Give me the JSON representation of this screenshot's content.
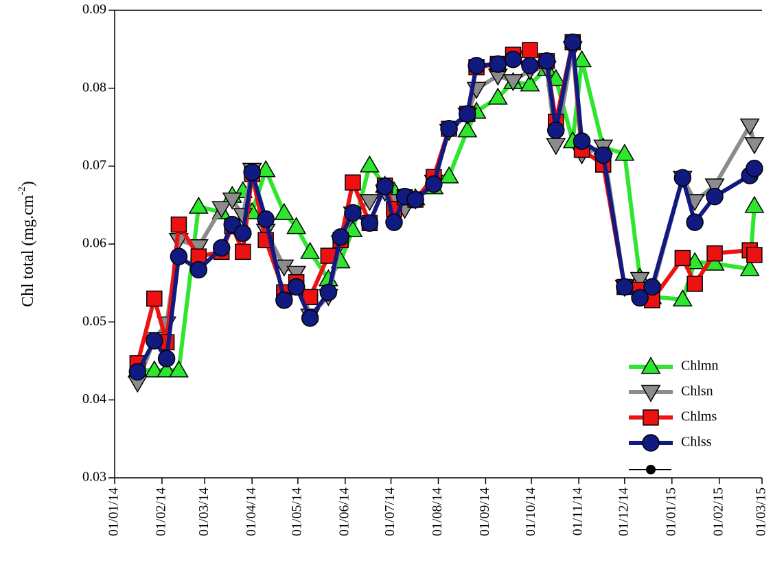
{
  "chart_data": {
    "type": "line",
    "ylabel": [
      "Chl total (mg.cm",
      "-2",
      ")"
    ],
    "x": [
      "2014-01-16",
      "2014-01-27",
      "2014-02-04",
      "2014-02-12",
      "2014-02-25",
      "2014-03-12",
      "2014-03-19",
      "2014-03-26",
      "2014-04-01",
      "2014-04-10",
      "2014-04-22",
      "2014-04-30",
      "2014-05-09",
      "2014-05-21",
      "2014-05-29",
      "2014-06-06",
      "2014-06-17",
      "2014-06-27",
      "2014-07-03",
      "2014-07-10",
      "2014-07-17",
      "2014-07-29",
      "2014-08-08",
      "2014-08-20",
      "2014-08-26",
      "2014-09-09",
      "2014-09-19",
      "2014-09-30",
      "2014-10-11",
      "2014-10-17",
      "2014-10-28",
      "2014-11-03",
      "2014-11-17",
      "2014-12-01",
      "2014-12-11",
      "2014-12-19",
      "2015-01-08",
      "2015-01-16",
      "2015-01-29",
      "2015-02-21",
      "2015-02-24"
    ],
    "series": [
      {
        "name": "Chlmn",
        "color": "#2ee62e",
        "marker": "triangle-up",
        "values": [
          0.0438,
          0.0438,
          0.0438,
          0.0438,
          0.0648,
          0.0641,
          0.0662,
          0.0668,
          0.0641,
          0.0695,
          0.064,
          0.0622,
          0.059,
          0.0555,
          0.0578,
          0.0618,
          0.0701,
          0.0675,
          0.0668,
          0.0655,
          0.0659,
          0.0673,
          0.0687,
          0.0746,
          0.077,
          0.0788,
          0.0808,
          0.0805,
          0.0825,
          0.0812,
          0.0732,
          0.0836,
          0.0724,
          0.0716,
          0.0557,
          0.0532,
          0.0529,
          0.0577,
          0.0575,
          0.0568,
          0.0649
        ]
      },
      {
        "name": "Chlsn",
        "color": "#8c8c8c",
        "marker": "triangle-down",
        "values": [
          0.0422,
          0.0478,
          0.0498,
          0.0605,
          0.0597,
          0.0646,
          0.0657,
          0.0637,
          0.0695,
          0.0617,
          0.0571,
          0.0563,
          0.0508,
          0.0533,
          0.0602,
          0.0639,
          0.0655,
          0.0667,
          0.0655,
          0.0645,
          0.0657,
          0.068,
          0.0745,
          0.0766,
          0.0799,
          0.0816,
          0.0809,
          0.0823,
          0.0826,
          0.0727,
          0.0851,
          0.0715,
          0.0725,
          0.0545,
          0.0555,
          0.054,
          0.0685,
          0.0655,
          0.0675,
          0.0752,
          0.0728
        ]
      },
      {
        "name": "Chlms",
        "color": "#ee1111",
        "marker": "square",
        "values": [
          0.0447,
          0.053,
          0.0474,
          0.0625,
          0.0584,
          0.059,
          0.0623,
          0.059,
          0.069,
          0.0605,
          0.0538,
          0.0551,
          0.0532,
          0.0585,
          0.0605,
          0.0679,
          0.0627,
          0.0675,
          0.0645,
          0.066,
          0.0657,
          0.0686,
          0.0748,
          0.0767,
          0.0827,
          0.0831,
          0.0843,
          0.0849,
          0.0835,
          0.0757,
          0.0859,
          0.0721,
          0.0702,
          0.0545,
          0.0541,
          0.0528,
          0.0582,
          0.0549,
          0.0588,
          0.0592,
          0.0586
        ]
      },
      {
        "name": "Chlss",
        "color": "#111a80",
        "marker": "circle",
        "values": [
          0.0436,
          0.0476,
          0.0453,
          0.0584,
          0.0567,
          0.0595,
          0.0625,
          0.0614,
          0.0692,
          0.0632,
          0.0528,
          0.0545,
          0.0505,
          0.0538,
          0.0609,
          0.064,
          0.0627,
          0.0674,
          0.0628,
          0.0661,
          0.0657,
          0.0677,
          0.0748,
          0.0767,
          0.0829,
          0.0831,
          0.0837,
          0.0829,
          0.0835,
          0.0746,
          0.0859,
          0.0732,
          0.0714,
          0.0545,
          0.0531,
          0.0545,
          0.0685,
          0.0628,
          0.0661,
          0.0688,
          0.0697
        ]
      }
    ],
    "xlim": [
      "2014-01-01",
      "2015-03-01"
    ],
    "xticks": [
      {
        "value": "2014-01-01",
        "label": "01/01/14"
      },
      {
        "value": "2014-02-01",
        "label": "01/02/14"
      },
      {
        "value": "2014-03-01",
        "label": "01/03/14"
      },
      {
        "value": "2014-04-01",
        "label": "01/04/14"
      },
      {
        "value": "2014-05-01",
        "label": "01/05/14"
      },
      {
        "value": "2014-06-01",
        "label": "01/06/14"
      },
      {
        "value": "2014-07-01",
        "label": "01/07/14"
      },
      {
        "value": "2014-08-01",
        "label": "01/08/14"
      },
      {
        "value": "2014-09-01",
        "label": "01/09/14"
      },
      {
        "value": "2014-10-01",
        "label": "01/10/14"
      },
      {
        "value": "2014-11-01",
        "label": "01/11/14"
      },
      {
        "value": "2014-12-01",
        "label": "01/12/14"
      },
      {
        "value": "2015-01-01",
        "label": "01/01/15"
      },
      {
        "value": "2015-02-01",
        "label": "01/02/15"
      },
      {
        "value": "2015-03-01",
        "label": "01/03/15"
      }
    ],
    "ylim": [
      0.03,
      0.09
    ],
    "yticks": [
      0.03,
      0.04,
      0.05,
      0.06,
      0.07,
      0.08,
      0.09
    ],
    "grid": false,
    "legend": "lower right"
  }
}
